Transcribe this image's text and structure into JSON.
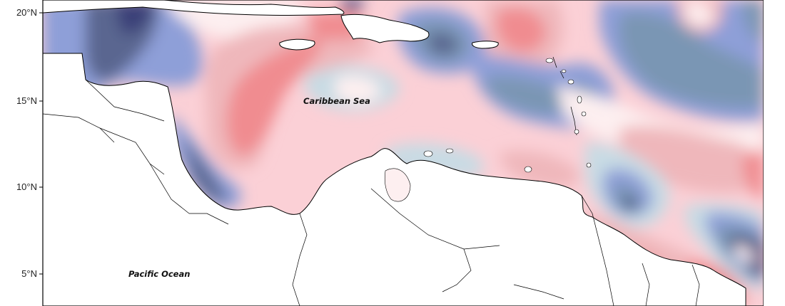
{
  "map": {
    "labels": {
      "sea": "Caribbean Sea",
      "ocean": "Pacific Ocean"
    },
    "lat_ticks": [
      {
        "key": "lat20",
        "label": "20°N"
      },
      {
        "key": "lat15",
        "label": "15°N"
      },
      {
        "key": "lat10",
        "label": "10°N"
      },
      {
        "key": "lat5",
        "label": "5°N"
      }
    ],
    "colors": {
      "strong_negative": "#3a3f78",
      "negative": "#5a6690",
      "moderate_negative": "#7a96b4",
      "mild_negative": "#8e9fd8",
      "slight_negative": "#c8dbe4",
      "neutral": "#fdeff0",
      "slight_positive": "#fbd0d6",
      "mild_positive": "#efb7bb",
      "positive": "#f08c90",
      "land": "#ffffff",
      "border": "#000000",
      "frame": "#000000"
    }
  }
}
